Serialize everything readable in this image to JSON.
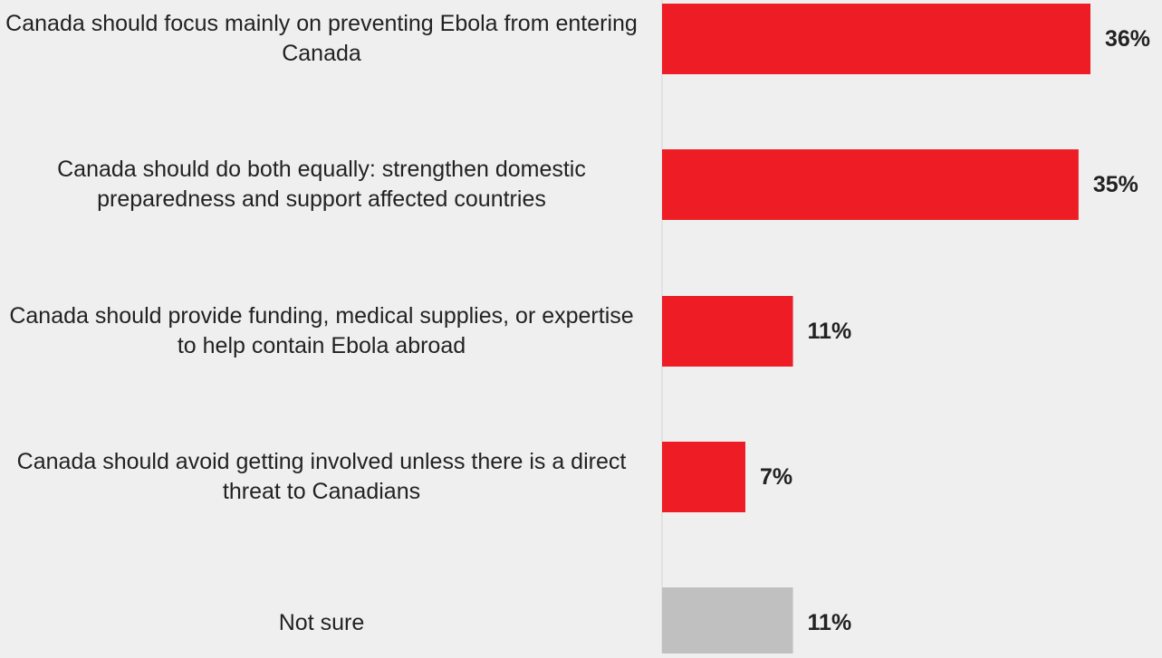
{
  "chart_data": {
    "type": "bar",
    "orientation": "horizontal",
    "categories": [
      "Canada should focus mainly on preventing Ebola from entering Canada",
      "Canada should do both equally: strengthen domestic preparedness and support affected countries",
      "Canada should provide funding, medical supplies, or expertise to help contain Ebola abroad",
      "Canada should avoid getting involved unless there is a direct threat to Canadians",
      "Not sure"
    ],
    "values": [
      36,
      35,
      11,
      7,
      11
    ],
    "value_labels": [
      "36%",
      "35%",
      "11%",
      "7%",
      "11%"
    ],
    "colors": [
      "#ee1c25",
      "#ee1c25",
      "#ee1c25",
      "#ee1c25",
      "#c0c0c0"
    ],
    "xlim": [
      0,
      36
    ],
    "grid": false,
    "legend": "none"
  }
}
